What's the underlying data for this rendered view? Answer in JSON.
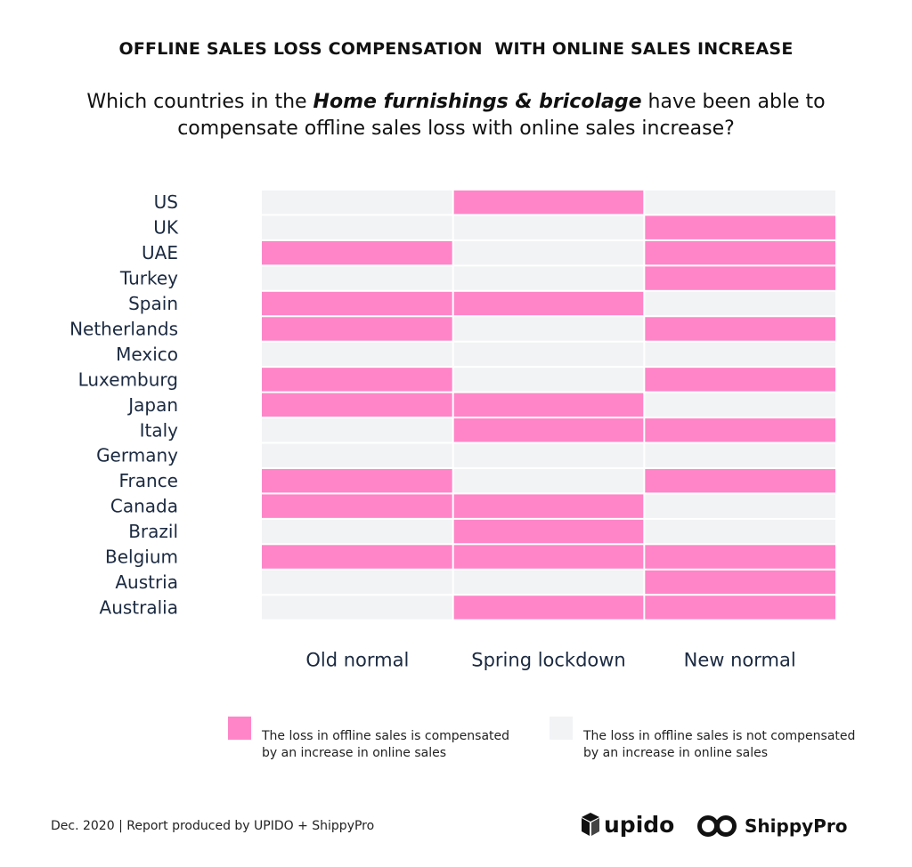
{
  "title": "OFFLINE SALES LOSS COMPENSATION  WITH ONLINE SALES INCREASE",
  "subtitle": {
    "before": "Which countries in the ",
    "emphasis": "Home furnishings & bricolage",
    "after": " have been able to compensate offline sales loss with online sales increase?"
  },
  "colors": {
    "compensated": "#ff85c8",
    "not_compensated": "#f2f3f5",
    "label_text": "#1b2a41"
  },
  "chart_data": {
    "type": "heatmap",
    "columns": [
      "Old normal",
      "Spring lockdown",
      "New normal"
    ],
    "rows": [
      "US",
      "UK",
      "UAE",
      "Turkey",
      "Spain",
      "Netherlands",
      "Mexico",
      "Luxemburg",
      "Japan",
      "Italy",
      "Germany",
      "France",
      "Canada",
      "Brazil",
      "Belgium",
      "Austria",
      "Australia"
    ],
    "values": [
      [
        0,
        1,
        0
      ],
      [
        0,
        0,
        1
      ],
      [
        1,
        0,
        1
      ],
      [
        0,
        0,
        1
      ],
      [
        1,
        1,
        0
      ],
      [
        1,
        0,
        1
      ],
      [
        0,
        0,
        0
      ],
      [
        1,
        0,
        1
      ],
      [
        1,
        1,
        0
      ],
      [
        0,
        1,
        1
      ],
      [
        0,
        0,
        0
      ],
      [
        1,
        0,
        1
      ],
      [
        1,
        1,
        0
      ],
      [
        0,
        1,
        0
      ],
      [
        1,
        1,
        1
      ],
      [
        0,
        0,
        1
      ],
      [
        0,
        1,
        1
      ]
    ],
    "legend": [
      {
        "value": 1,
        "label": "The loss in offline sales is compensated by an increase in online sales"
      },
      {
        "value": 0,
        "label": "The loss in offline sales is not compensated by an increase in online sales"
      }
    ]
  },
  "legend": {
    "compensated_line1": "The loss in offline sales is compensated",
    "compensated_line2": "by an increase in online sales",
    "not_compensated_line1": "The loss in offline sales is not compensated",
    "not_compensated_line2": "by an increase in online sales"
  },
  "footer": {
    "credit": "Dec. 2020 | Report produced by UPIDO + ShippyPro"
  },
  "logos": {
    "upido": "upido",
    "shippypro": "ShippyPro",
    "upido_icon": "cube-icon",
    "shippypro_icon": "infinity-icon"
  }
}
